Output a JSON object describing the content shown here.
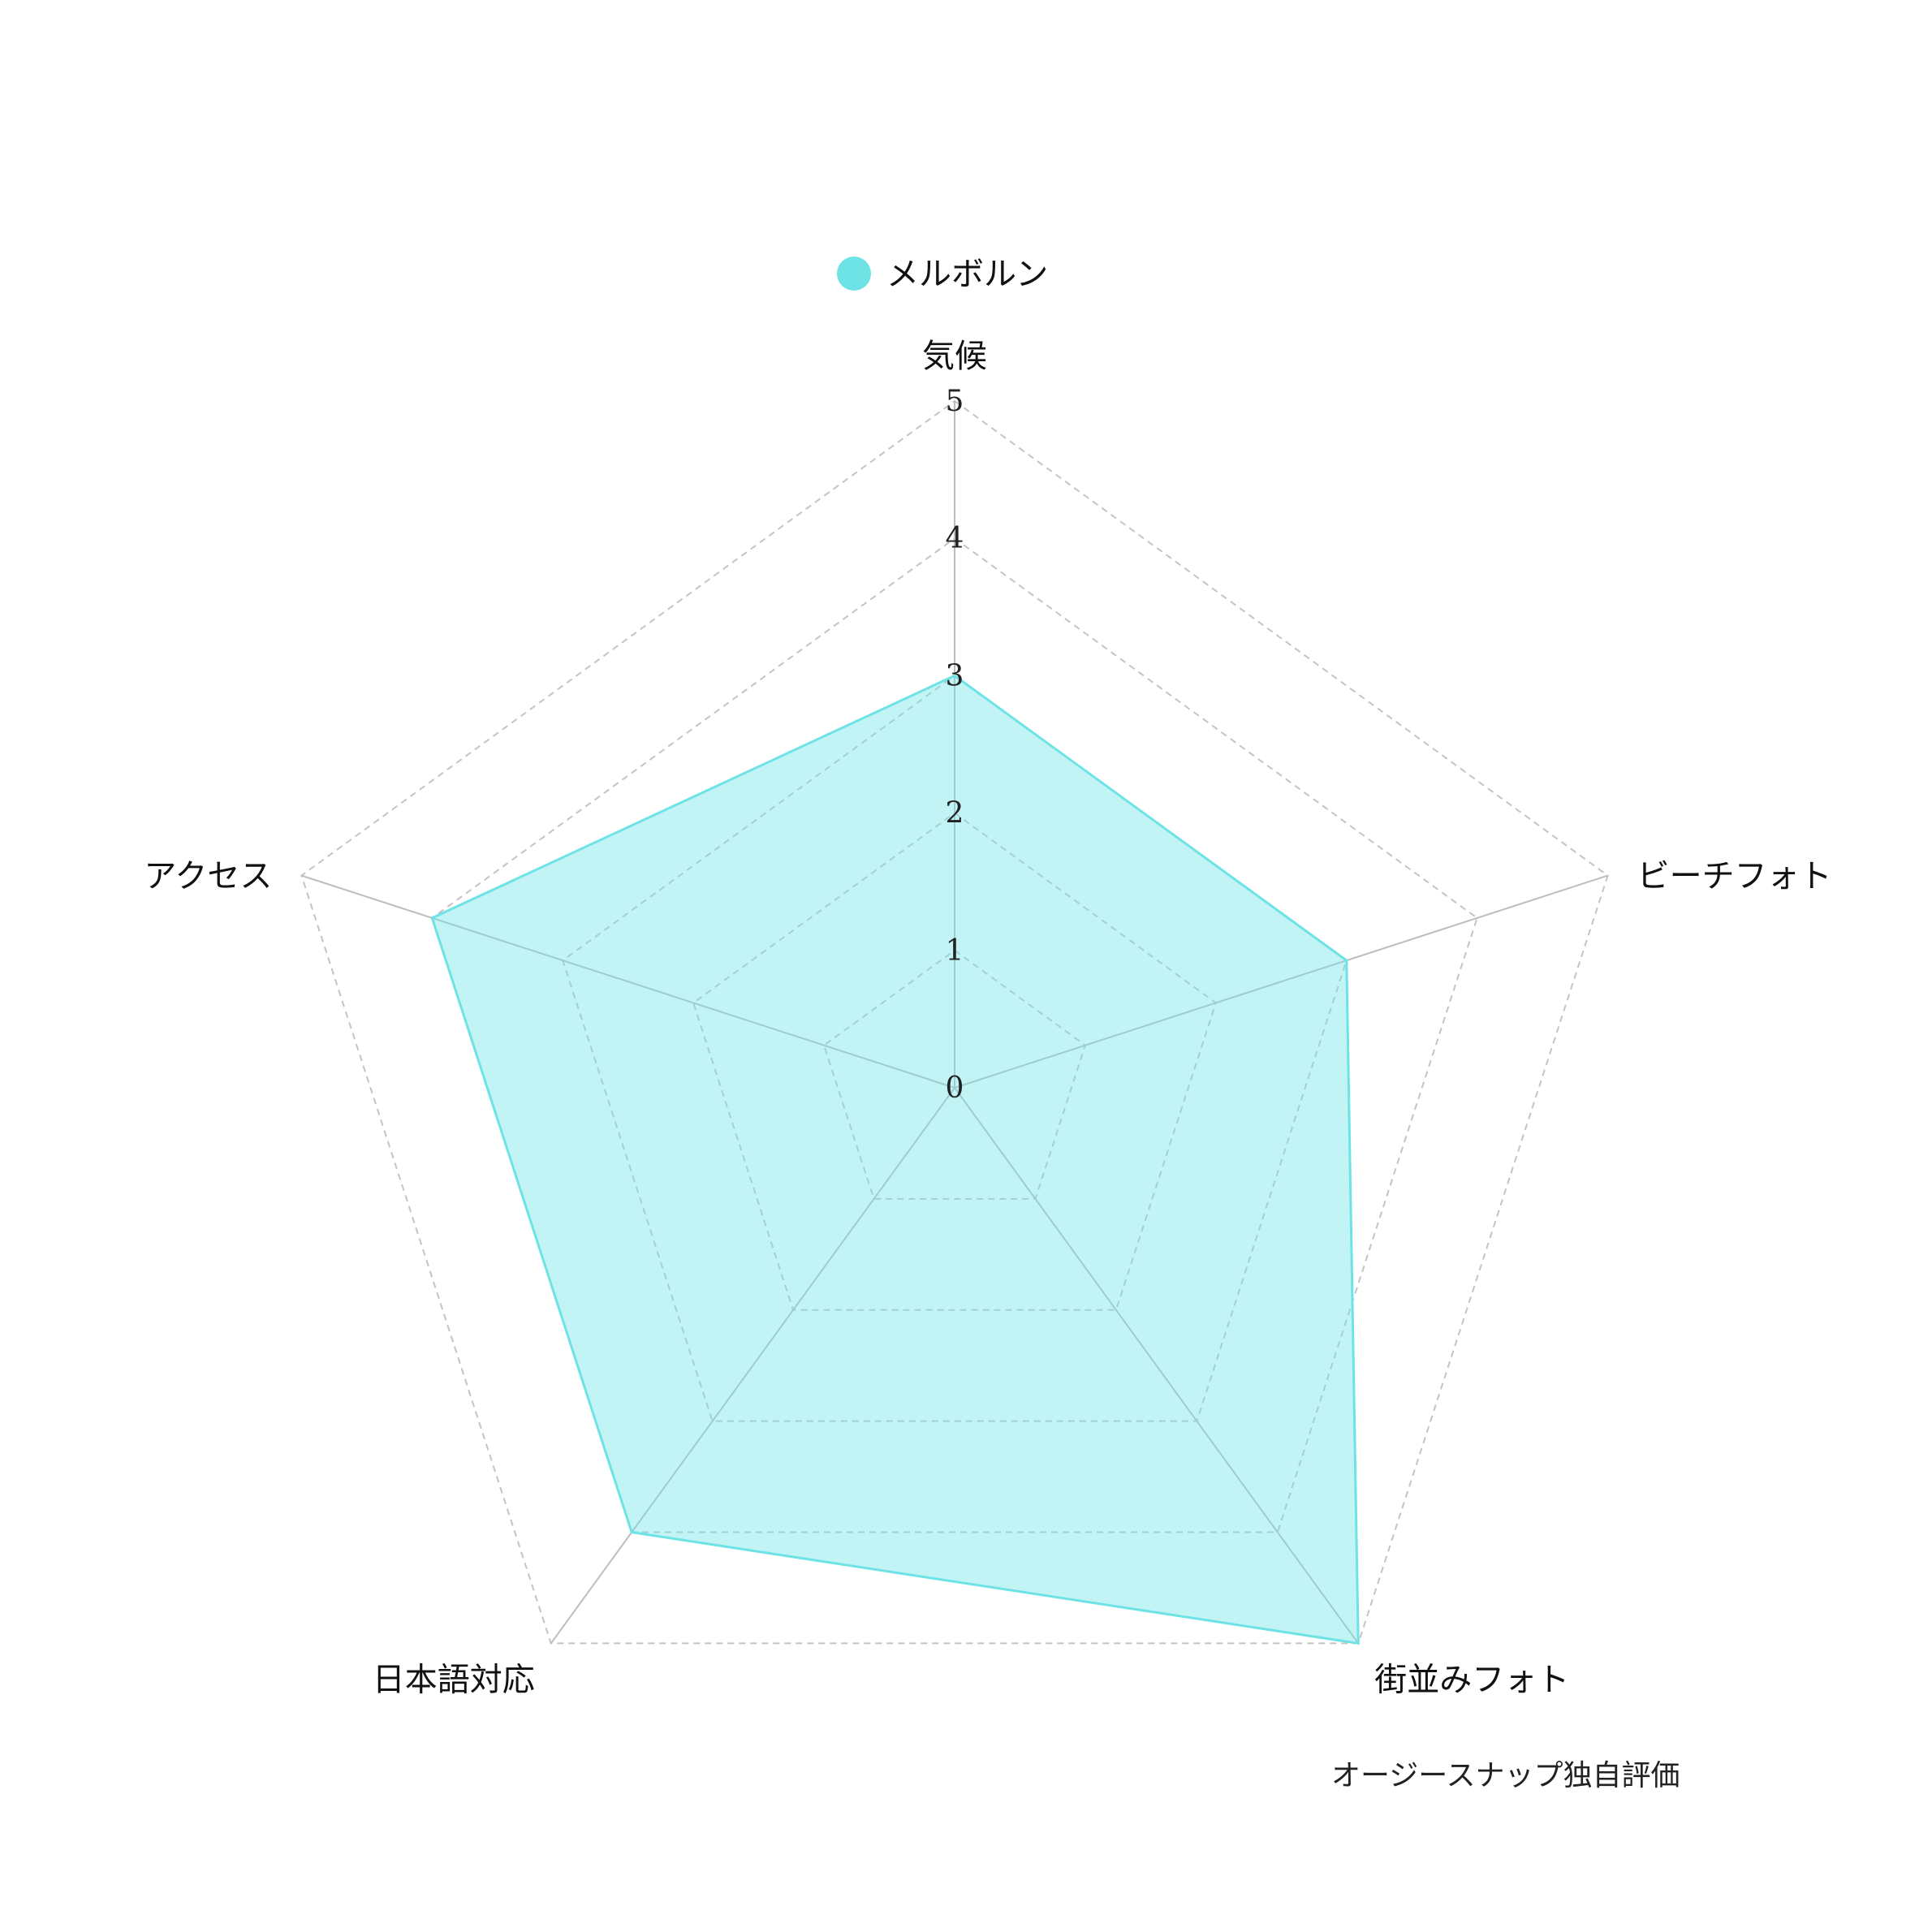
{
  "chart_data": {
    "type": "radar",
    "axes": [
      "気候",
      "ビーチフォト",
      "街並みフォト",
      "日本語対応",
      "アクセス"
    ],
    "rlim": [
      0,
      5
    ],
    "ticks": [
      "0",
      "1",
      "2",
      "3",
      "4",
      "5"
    ],
    "series": [
      {
        "name": "メルボルン",
        "values": [
          3,
          3,
          5,
          4,
          4
        ],
        "color": "#6ee3e6"
      }
    ],
    "grid": true,
    "legend": "top-center"
  },
  "note": "オージースナップ独自評価"
}
